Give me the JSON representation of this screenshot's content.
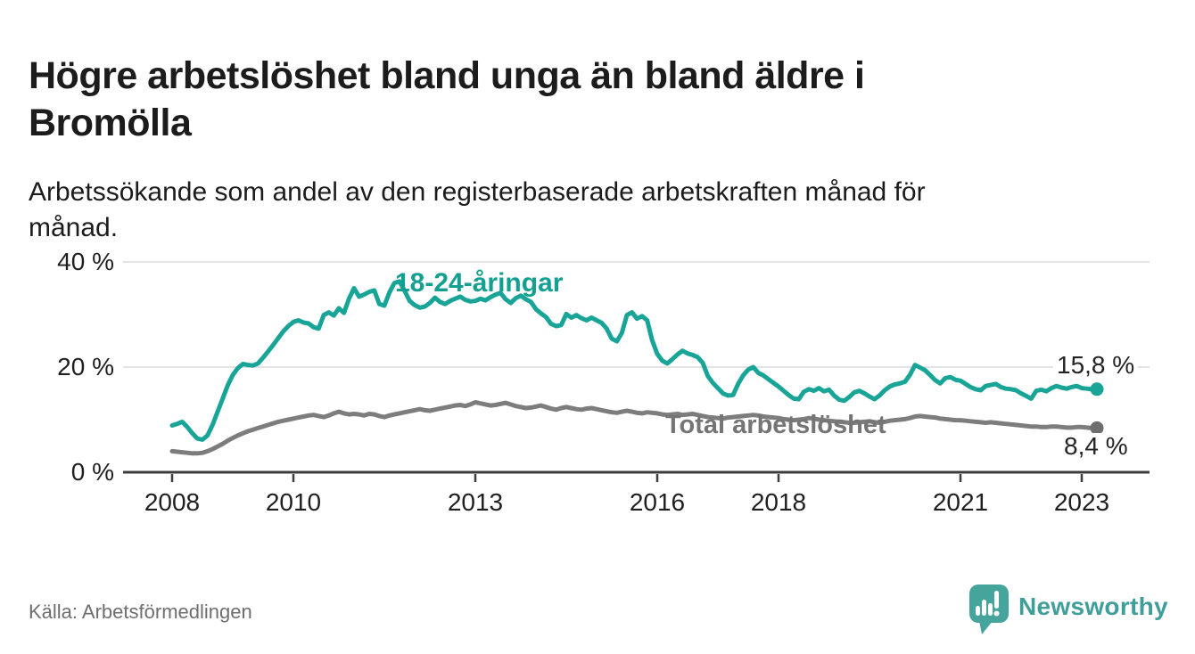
{
  "header": {
    "title_line1": "Högre arbetslöshet bland unga än bland äldre i",
    "title_line2": "Bromölla",
    "subtitle_line1": "Arbetssökande som andel av den registerbaserade arbetskraften månad för",
    "subtitle_line2": "månad."
  },
  "footer": {
    "source": "Källa: Arbetsförmedlingen",
    "brand": "Newsworthy"
  },
  "theme": {
    "accent_teal": "#14a091",
    "line_teal": "#18a496",
    "line_gray": "#7d7d7d",
    "dot_gray": "#6e6e6e",
    "axis": "#3c3c3c",
    "grid": "#dadada",
    "text": "#1c1c1c",
    "muted": "#6e6e6e",
    "logo_teal": "#45a49c"
  },
  "chart_data": {
    "type": "line",
    "title": "Högre arbetslöshet bland unga än bland äldre i Bromölla",
    "subtitle": "Arbetssökande som andel av den registerbaserade arbetskraften månad för månad.",
    "unit": "%",
    "frequency": "monthly",
    "x_start": "2008-01",
    "x_end": "2023-04",
    "ylim": [
      0,
      42
    ],
    "grid": "horizontal",
    "y_ticks": [
      {
        "value": 0,
        "label": "0 %"
      },
      {
        "value": 20,
        "label": "20 %"
      },
      {
        "value": 40,
        "label": "40 %"
      }
    ],
    "x_ticks": [
      {
        "year": 2008,
        "label": "2008"
      },
      {
        "year": 2010,
        "label": "2010"
      },
      {
        "year": 2013,
        "label": "2013"
      },
      {
        "year": 2016,
        "label": "2016"
      },
      {
        "year": 2018,
        "label": "2018"
      },
      {
        "year": 2021,
        "label": "2021"
      },
      {
        "year": 2023,
        "label": "2023"
      }
    ],
    "series": [
      {
        "name": "18-24-åringar",
        "color": "#18a496",
        "dot_color": "#18a496",
        "end_label": "15,8 %",
        "end_value": 15.8,
        "values": [
          8.9,
          9.2,
          9.6,
          8.6,
          7.4,
          6.4,
          6.2,
          7.0,
          9.0,
          11.5,
          14.0,
          16.5,
          18.5,
          19.8,
          20.6,
          20.4,
          20.3,
          20.7,
          21.8,
          23.0,
          24.2,
          25.5,
          26.8,
          27.8,
          28.6,
          28.9,
          28.5,
          28.3,
          27.6,
          27.3,
          29.9,
          30.4,
          29.8,
          31.2,
          30.3,
          33.0,
          35.0,
          33.4,
          33.8,
          34.3,
          34.6,
          32.0,
          31.7,
          34.2,
          36.0,
          36.3,
          34.5,
          32.6,
          31.8,
          31.3,
          31.5,
          32.2,
          33.2,
          32.4,
          32.0,
          32.6,
          33.0,
          33.4,
          32.8,
          32.5,
          32.6,
          33.0,
          32.7,
          33.3,
          33.8,
          34.1,
          32.9,
          32.2,
          33.1,
          33.6,
          32.9,
          32.4,
          31.0,
          30.2,
          29.5,
          28.2,
          27.8,
          28.0,
          30.1,
          29.4,
          29.9,
          29.3,
          28.9,
          29.4,
          28.9,
          28.4,
          27.3,
          25.4,
          24.9,
          26.5,
          29.9,
          30.4,
          29.2,
          29.7,
          28.9,
          25.1,
          22.5,
          21.2,
          20.7,
          21.5,
          22.4,
          23.1,
          22.6,
          22.3,
          21.9,
          20.8,
          18.3,
          17.0,
          16.0,
          15.0,
          14.6,
          14.7,
          16.8,
          18.4,
          19.5,
          20.0,
          18.9,
          18.4,
          17.7,
          17.0,
          16.3,
          15.5,
          14.7,
          14.0,
          13.9,
          15.3,
          15.8,
          15.5,
          16.0,
          15.4,
          15.7,
          14.6,
          13.8,
          13.6,
          14.3,
          15.2,
          15.5,
          15.0,
          14.4,
          13.9,
          14.6,
          15.6,
          16.3,
          16.7,
          16.9,
          17.2,
          18.5,
          20.4,
          19.9,
          19.4,
          18.5,
          17.5,
          16.9,
          17.9,
          18.1,
          17.6,
          17.4,
          16.8,
          16.2,
          15.8,
          15.6,
          16.4,
          16.6,
          16.8,
          16.2,
          15.9,
          15.8,
          15.6,
          15.0,
          14.5,
          14.0,
          15.5,
          15.7,
          15.4,
          16.0,
          16.4,
          16.1,
          15.9,
          16.2,
          16.4,
          16.0,
          15.9,
          15.8,
          15.8
        ]
      },
      {
        "name": "Total arbetslöshet",
        "color": "#7d7d7d",
        "dot_color": "#6e6e6e",
        "end_label": "8,4 %",
        "end_value": 8.4,
        "values": [
          4.0,
          3.9,
          3.8,
          3.7,
          3.6,
          3.6,
          3.7,
          4.0,
          4.4,
          4.9,
          5.4,
          6.0,
          6.5,
          7.0,
          7.4,
          7.8,
          8.1,
          8.4,
          8.7,
          9.0,
          9.3,
          9.6,
          9.8,
          10.0,
          10.2,
          10.4,
          10.6,
          10.8,
          10.9,
          10.7,
          10.5,
          10.8,
          11.2,
          11.5,
          11.2,
          11.0,
          11.1,
          11.0,
          10.8,
          11.1,
          11.0,
          10.7,
          10.5,
          10.8,
          11.0,
          11.2,
          11.4,
          11.6,
          11.8,
          12.0,
          11.8,
          11.7,
          11.9,
          12.1,
          12.3,
          12.5,
          12.7,
          12.8,
          12.6,
          12.9,
          13.3,
          13.1,
          12.9,
          12.7,
          12.8,
          13.0,
          13.2,
          12.9,
          12.6,
          12.4,
          12.2,
          12.3,
          12.5,
          12.7,
          12.4,
          12.1,
          11.9,
          12.2,
          12.4,
          12.2,
          12.0,
          11.9,
          12.1,
          12.2,
          12.0,
          11.8,
          11.6,
          11.4,
          11.3,
          11.5,
          11.7,
          11.5,
          11.3,
          11.2,
          11.4,
          11.3,
          11.2,
          11.0,
          10.9,
          11.0,
          11.1,
          10.9,
          11.0,
          11.1,
          10.9,
          10.7,
          10.5,
          10.4,
          10.3,
          10.2,
          10.4,
          10.5,
          10.6,
          10.7,
          10.8,
          10.9,
          10.8,
          10.6,
          10.5,
          10.4,
          10.3,
          10.1,
          10.0,
          9.9,
          10.0,
          10.1,
          10.3,
          10.2,
          10.0,
          9.9,
          9.8,
          9.7,
          9.6,
          9.5,
          9.4,
          9.4,
          9.5,
          9.6,
          9.7,
          9.5,
          9.4,
          9.6,
          9.8,
          9.9,
          10.0,
          10.1,
          10.3,
          10.6,
          10.7,
          10.6,
          10.5,
          10.4,
          10.2,
          10.1,
          10.0,
          9.9,
          9.9,
          9.8,
          9.7,
          9.6,
          9.5,
          9.4,
          9.5,
          9.4,
          9.3,
          9.2,
          9.1,
          9.0,
          8.9,
          8.8,
          8.7,
          8.7,
          8.6,
          8.6,
          8.7,
          8.7,
          8.6,
          8.5,
          8.5,
          8.6,
          8.6,
          8.5,
          8.4,
          8.4
        ]
      }
    ]
  }
}
